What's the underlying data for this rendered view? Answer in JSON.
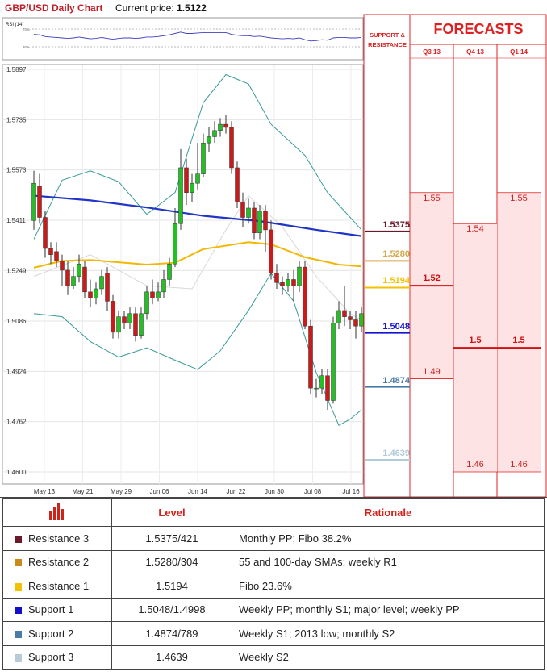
{
  "header": {
    "title": "GBP/USD Daily Chart",
    "price_label": "Current price:",
    "price": "1.5122"
  },
  "rsi": {
    "label": "RSI (14)",
    "top_level": "70%",
    "bottom_level": "30%"
  },
  "forecast_panel": {
    "title": "FORECASTS",
    "sr_title_line1": "SUPPORT &",
    "sr_title_line2": "RESISTANCE",
    "quarters": [
      "Q3 13",
      "Q4 13",
      "Q1 14"
    ]
  },
  "sr_levels": [
    {
      "value": 1.5375,
      "label": "1.5375",
      "color": "#6b1a2a"
    },
    {
      "value": 1.528,
      "label": "1.5280",
      "color": "#d4a84c"
    },
    {
      "value": 1.5194,
      "label": "1.5194",
      "color": "#f2c200"
    },
    {
      "value": 1.5048,
      "label": "1.5048",
      "color": "#1515d0"
    },
    {
      "value": 1.4874,
      "label": "1.4874",
      "color": "#4a7ba8"
    },
    {
      "value": 1.4639,
      "label": "1.4639",
      "color": "#b0ccd8"
    }
  ],
  "forecasts": [
    {
      "quarter": "Q3 13",
      "high": "1.55",
      "mid": "1.52",
      "low": "1.49",
      "high_v": 1.55,
      "mid_v": 1.52,
      "low_v": 1.49
    },
    {
      "quarter": "Q4 13",
      "high": "1.54",
      "mid": "1.5",
      "low": "1.46",
      "high_v": 1.54,
      "mid_v": 1.5,
      "low_v": 1.46
    },
    {
      "quarter": "Q1 14",
      "high": "1.55",
      "mid": "1.5",
      "low": "1.46",
      "high_v": 1.55,
      "mid_v": 1.5,
      "low_v": 1.46
    }
  ],
  "colors": {
    "accent_red": "#e02020",
    "forecast_fill": "#fde3e3",
    "bull": "#22c022",
    "bear": "#cc1a1a"
  },
  "chart_data": {
    "type": "candlestick",
    "title": "GBP/USD Daily Chart",
    "ylim": [
      1.46,
      1.5897
    ],
    "y_ticks": [
      "1.5897",
      "1.5735",
      "1.5573",
      "1.5411",
      "1.5249",
      "1.5086",
      "1.4924",
      "1.4762",
      "1.4600"
    ],
    "x_ticks": [
      "May 13",
      "May 21",
      "May 29",
      "Jun 06",
      "Jun 14",
      "Jun 22",
      "Jun 30",
      "Jul 08",
      "Jul 16"
    ],
    "candles": [
      [
        1.541,
        1.553,
        1.557,
        1.538
      ],
      [
        1.552,
        1.542,
        1.556,
        1.54
      ],
      [
        1.542,
        1.532,
        1.544,
        1.529
      ],
      [
        1.532,
        1.53,
        1.534,
        1.527
      ],
      [
        1.531,
        1.528,
        1.534,
        1.526
      ],
      [
        1.528,
        1.525,
        1.53,
        1.52
      ],
      [
        1.525,
        1.52,
        1.528,
        1.517
      ],
      [
        1.52,
        1.523,
        1.526,
        1.519
      ],
      [
        1.523,
        1.527,
        1.53,
        1.521
      ],
      [
        1.526,
        1.518,
        1.528,
        1.516
      ],
      [
        1.518,
        1.516,
        1.522,
        1.513
      ],
      [
        1.516,
        1.519,
        1.521,
        1.514
      ],
      [
        1.519,
        1.523,
        1.525,
        1.517
      ],
      [
        1.524,
        1.515,
        1.526,
        1.512
      ],
      [
        1.515,
        1.505,
        1.517,
        1.503
      ],
      [
        1.505,
        1.51,
        1.512,
        1.503
      ],
      [
        1.51,
        1.508,
        1.512,
        1.506
      ],
      [
        1.508,
        1.511,
        1.513,
        1.506
      ],
      [
        1.511,
        1.504,
        1.513,
        1.502
      ],
      [
        1.504,
        1.511,
        1.513,
        1.503
      ],
      [
        1.511,
        1.518,
        1.52,
        1.509
      ],
      [
        1.518,
        1.516,
        1.522,
        1.514
      ],
      [
        1.516,
        1.518,
        1.521,
        1.515
      ],
      [
        1.518,
        1.522,
        1.525,
        1.516
      ],
      [
        1.522,
        1.527,
        1.529,
        1.52
      ],
      [
        1.527,
        1.54,
        1.545,
        1.526
      ],
      [
        1.54,
        1.558,
        1.564,
        1.538
      ],
      [
        1.558,
        1.55,
        1.561,
        1.546
      ],
      [
        1.55,
        1.553,
        1.556,
        1.547
      ],
      [
        1.553,
        1.556,
        1.566,
        1.551
      ],
      [
        1.556,
        1.566,
        1.569,
        1.555
      ],
      [
        1.566,
        1.568,
        1.571,
        1.563
      ],
      [
        1.568,
        1.57,
        1.573,
        1.566
      ],
      [
        1.57,
        1.572,
        1.574,
        1.568
      ],
      [
        1.572,
        1.571,
        1.575,
        1.569
      ],
      [
        1.571,
        1.558,
        1.573,
        1.556
      ],
      [
        1.558,
        1.547,
        1.56,
        1.545
      ],
      [
        1.547,
        1.542,
        1.55,
        1.539
      ],
      [
        1.542,
        1.545,
        1.548,
        1.54
      ],
      [
        1.545,
        1.537,
        1.547,
        1.535
      ],
      [
        1.537,
        1.544,
        1.546,
        1.535
      ],
      [
        1.544,
        1.538,
        1.546,
        1.531
      ],
      [
        1.538,
        1.524,
        1.541,
        1.522
      ],
      [
        1.524,
        1.521,
        1.527,
        1.519
      ],
      [
        1.521,
        1.52,
        1.523,
        1.517
      ],
      [
        1.52,
        1.522,
        1.524,
        1.518
      ],
      [
        1.522,
        1.52,
        1.525,
        1.515
      ],
      [
        1.52,
        1.526,
        1.528,
        1.518
      ],
      [
        1.526,
        1.507,
        1.528,
        1.506
      ],
      [
        1.507,
        1.487,
        1.509,
        1.485
      ],
      [
        1.487,
        1.487,
        1.49,
        1.484
      ],
      [
        1.487,
        1.491,
        1.493,
        1.485
      ],
      [
        1.491,
        1.483,
        1.493,
        1.48
      ],
      [
        1.483,
        1.508,
        1.51,
        1.482
      ],
      [
        1.508,
        1.512,
        1.515,
        1.506
      ],
      [
        1.512,
        1.51,
        1.52,
        1.507
      ],
      [
        1.51,
        1.509,
        1.512,
        1.506
      ],
      [
        1.509,
        1.507,
        1.512,
        1.503
      ],
      [
        1.507,
        1.511,
        1.513,
        1.505
      ]
    ],
    "sma_blue": [
      [
        0,
        1.549
      ],
      [
        10,
        1.5475
      ],
      [
        20,
        1.5452
      ],
      [
        30,
        1.5425
      ],
      [
        40,
        1.5408
      ],
      [
        50,
        1.538
      ],
      [
        58,
        1.536
      ]
    ],
    "sma_orange": [
      [
        0,
        1.5258
      ],
      [
        5,
        1.528
      ],
      [
        10,
        1.5283
      ],
      [
        20,
        1.5268
      ],
      [
        25,
        1.5274
      ],
      [
        30,
        1.5318
      ],
      [
        38,
        1.534
      ],
      [
        42,
        1.5333
      ],
      [
        48,
        1.5292
      ],
      [
        54,
        1.5268
      ],
      [
        58,
        1.5262
      ]
    ],
    "bb_upper": [
      [
        0,
        1.535
      ],
      [
        5,
        1.554
      ],
      [
        10,
        1.557
      ],
      [
        15,
        1.5535
      ],
      [
        20,
        1.543
      ],
      [
        25,
        1.55
      ],
      [
        30,
        1.579
      ],
      [
        34,
        1.588
      ],
      [
        38,
        1.585
      ],
      [
        42,
        1.572
      ],
      [
        48,
        1.562
      ],
      [
        52,
        1.55
      ],
      [
        56,
        1.542
      ],
      [
        58,
        1.538
      ]
    ],
    "bb_lower": [
      [
        0,
        1.511
      ],
      [
        5,
        1.51
      ],
      [
        10,
        1.502
      ],
      [
        15,
        1.497
      ],
      [
        20,
        1.5
      ],
      [
        25,
        1.496
      ],
      [
        29,
        1.493
      ],
      [
        33,
        1.499
      ],
      [
        38,
        1.512
      ],
      [
        42,
        1.524
      ],
      [
        46,
        1.515
      ],
      [
        50,
        1.492
      ],
      [
        54,
        1.475
      ],
      [
        56,
        1.477
      ],
      [
        58,
        1.48
      ]
    ],
    "bb_mid": [
      [
        0,
        1.523
      ],
      [
        10,
        1.53
      ],
      [
        20,
        1.52
      ],
      [
        28,
        1.519
      ],
      [
        34,
        1.538
      ],
      [
        38,
        1.549
      ],
      [
        44,
        1.539
      ],
      [
        50,
        1.523
      ],
      [
        56,
        1.511
      ],
      [
        58,
        1.509
      ]
    ],
    "rsi_values": [
      58,
      57,
      53,
      52,
      51,
      50,
      49,
      50,
      52,
      50,
      48,
      49,
      51,
      49,
      47,
      49,
      50,
      50,
      49,
      50,
      52,
      52,
      53,
      55,
      57,
      60,
      63,
      60,
      60,
      61,
      62,
      62,
      62,
      62,
      62,
      58,
      56,
      55,
      55,
      53,
      54,
      52,
      50,
      49,
      48,
      49,
      48,
      50,
      46,
      43,
      44,
      46,
      45,
      50,
      51,
      51,
      50,
      50,
      51
    ]
  },
  "table": {
    "headers": [
      "Level",
      "Rationale"
    ],
    "header_icon": "bar-chart-icon",
    "rows": [
      {
        "name": "Resistance 3",
        "level": "1.5375/421",
        "rationale": "Monthly PP; Fibo 38.2%",
        "color": "#6b1a2a"
      },
      {
        "name": "Resistance 2",
        "level": "1.5280/304",
        "rationale": "55 and 100-day SMAs; weekly R1",
        "color": "#c98a1a"
      },
      {
        "name": "Resistance 1",
        "level": "1.5194",
        "rationale": "Fibo 23.6%",
        "color": "#f2c200"
      },
      {
        "name": "Support 1",
        "level": "1.5048/1.4998",
        "rationale": "Weekly PP; monthly S1;  major level; weekly PP",
        "color": "#1010c8"
      },
      {
        "name": "Support 2",
        "level": "1.4874/789",
        "rationale": "Weekly S1; 2013 low; monthly S2",
        "color": "#4a7ba8"
      },
      {
        "name": "Support 3",
        "level": "1.4639",
        "rationale": "Weekly S2",
        "color": "#b8ccd8"
      }
    ]
  }
}
